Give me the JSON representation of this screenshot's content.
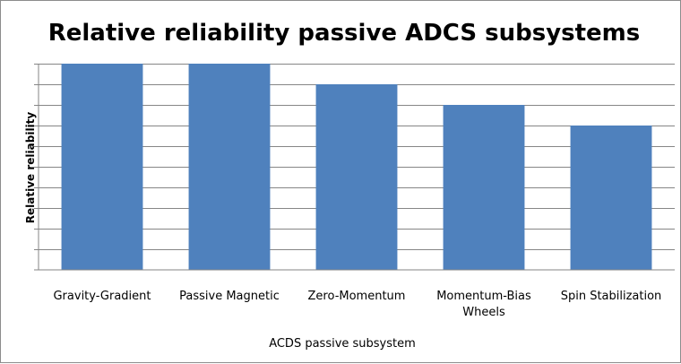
{
  "chart_data": {
    "type": "bar",
    "title": "Relative reliability passive ADCS subsystems",
    "xlabel": "ACDS passive subsystem",
    "ylabel": "Relative reliability",
    "categories": [
      "Gravity-Gradient",
      "Passive Magnetic",
      "Zero-Momentum",
      "Momentum-Bias Wheels",
      "Spin Stabilization"
    ],
    "category_lines": [
      [
        "Gravity-Gradient"
      ],
      [
        "Passive Magnetic"
      ],
      [
        "Zero-Momentum"
      ],
      [
        "Momentum-Bias",
        "Wheels"
      ],
      [
        "Spin Stabilization"
      ]
    ],
    "values": [
      10,
      10,
      9,
      8,
      7
    ],
    "ylim": [
      0,
      10
    ],
    "grid": true,
    "bar_color": "#4f81bd",
    "grid_color": "#868686"
  }
}
